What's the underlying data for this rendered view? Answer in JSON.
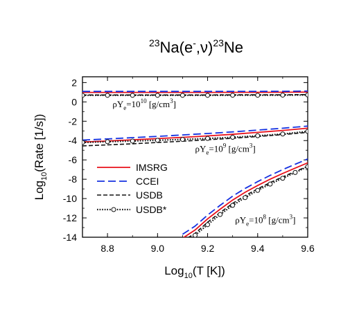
{
  "chart_data": {
    "type": "line",
    "title": {
      "pre_sup": "23",
      "element1": "Na(e",
      "minus_sup": "-",
      "mid": ",ν)",
      "post_sup": "23",
      "element2": "Ne"
    },
    "xlabel": {
      "pre": "Log",
      "sub": "10",
      "post": "(T [K])"
    },
    "ylabel": {
      "pre": "Log",
      "sub": "10",
      "post": "(Rate [1/s])"
    },
    "xlim": [
      8.7,
      9.6
    ],
    "ylim": [
      -14,
      2.6
    ],
    "xticks": [
      8.8,
      9.0,
      9.2,
      9.4,
      9.6
    ],
    "xtick_labels": [
      "8.8",
      "9.0",
      "9.2",
      "9.4",
      "9.6"
    ],
    "yticks": [
      2,
      0,
      -2,
      -4,
      -6,
      -8,
      -10,
      -12,
      -14
    ],
    "ytick_labels": [
      "2",
      "0",
      "-2",
      "-4",
      "-6",
      "-8",
      "-10",
      "-12",
      "-14"
    ],
    "legend": {
      "placement": "lower-left",
      "entries": [
        "IMSRG",
        "CCEI",
        "USDB",
        "USDB*"
      ]
    },
    "annotations": [
      {
        "id": "d10",
        "pre": "ρY",
        "sub": "e",
        "mid": "=10",
        "sup": "10",
        "post": " [g/cm",
        "sup2": "3",
        "end": "]",
        "x": 8.82,
        "y": -0.55
      },
      {
        "id": "d9",
        "pre": "ρY",
        "sub": "e",
        "mid": "=10",
        "sup": "9",
        "post": " [g/cm",
        "sup2": "3",
        "end": "]",
        "x": 9.15,
        "y": -5.15
      },
      {
        "id": "d8",
        "pre": "ρY",
        "sub": "e",
        "mid": "=10",
        "sup": "8",
        "post": " [g/cm",
        "sup2": "3",
        "end": "]",
        "x": 9.31,
        "y": -12.55
      }
    ],
    "groups": [
      {
        "density": "10^10",
        "x": [
          8.7,
          8.8,
          8.9,
          9.0,
          9.1,
          9.2,
          9.3,
          9.4,
          9.5,
          9.6
        ],
        "series": [
          {
            "name": "IMSRG",
            "values": [
              0.98,
              0.98,
              0.98,
              0.98,
              0.98,
              0.98,
              0.99,
              0.99,
              1.0,
              1.02
            ]
          },
          {
            "name": "CCEI",
            "values": [
              1.08,
              1.08,
              1.08,
              1.08,
              1.08,
              1.08,
              1.09,
              1.09,
              1.1,
              1.12
            ]
          },
          {
            "name": "USDB",
            "values": [
              0.72,
              0.72,
              0.72,
              0.72,
              0.72,
              0.72,
              0.73,
              0.73,
              0.74,
              0.76
            ]
          },
          {
            "name": "USDB*",
            "values": [
              0.68,
              0.68,
              0.68,
              0.68,
              0.68,
              0.68,
              0.69,
              0.69,
              0.7,
              0.72
            ]
          }
        ]
      },
      {
        "density": "10^9",
        "x": [
          8.7,
          8.8,
          8.9,
          9.0,
          9.1,
          9.2,
          9.3,
          9.4,
          9.5,
          9.6
        ],
        "series": [
          {
            "name": "IMSRG",
            "values": [
              -4.15,
              -4.05,
              -3.92,
              -3.8,
              -3.67,
              -3.52,
              -3.35,
              -3.15,
              -2.95,
              -2.72
            ]
          },
          {
            "name": "CCEI",
            "values": [
              -3.95,
              -3.83,
              -3.7,
              -3.57,
              -3.42,
              -3.27,
              -3.1,
              -2.92,
              -2.72,
              -2.5
            ]
          },
          {
            "name": "USDB",
            "values": [
              -4.55,
              -4.45,
              -4.33,
              -4.2,
              -4.07,
              -3.92,
              -3.76,
              -3.58,
              -3.38,
              -3.15
            ]
          },
          {
            "name": "USDB*",
            "values": [
              -4.2,
              -4.12,
              -4.05,
              -3.97,
              -3.88,
              -3.78,
              -3.66,
              -3.5,
              -3.32,
              -3.05
            ]
          }
        ]
      },
      {
        "density": "10^8",
        "x": [
          9.1,
          9.15,
          9.2,
          9.25,
          9.3,
          9.35,
          9.4,
          9.45,
          9.5,
          9.55,
          9.6
        ],
        "series": [
          {
            "name": "IMSRG",
            "values": [
              -14.1,
              -13.25,
              -12.1,
              -11.1,
              -10.15,
              -9.35,
              -8.65,
              -8.0,
              -7.4,
              -6.85,
              -6.3
            ]
          },
          {
            "name": "CCEI",
            "values": [
              -13.7,
              -12.85,
              -11.7,
              -10.7,
              -9.75,
              -8.95,
              -8.25,
              -7.6,
              -7.0,
              -6.45,
              -5.9
            ]
          },
          {
            "name": "USDB",
            "values": [
              -14.4,
              -13.6,
              -12.45,
              -11.45,
              -10.5,
              -9.7,
              -9.0,
              -8.35,
              -7.75,
              -7.2,
              -6.65
            ]
          },
          {
            "name": "USDB*",
            "values": [
              -14.6,
              -13.8,
              -12.7,
              -11.65,
              -10.7,
              -9.9,
              -9.15,
              -8.5,
              -7.9,
              -7.3,
              -6.7
            ]
          }
        ]
      }
    ]
  },
  "colors": {
    "IMSRG": "#e8101a",
    "CCEI": "#1430e0",
    "USDB": "#111111",
    "USDB*": "#111111"
  }
}
